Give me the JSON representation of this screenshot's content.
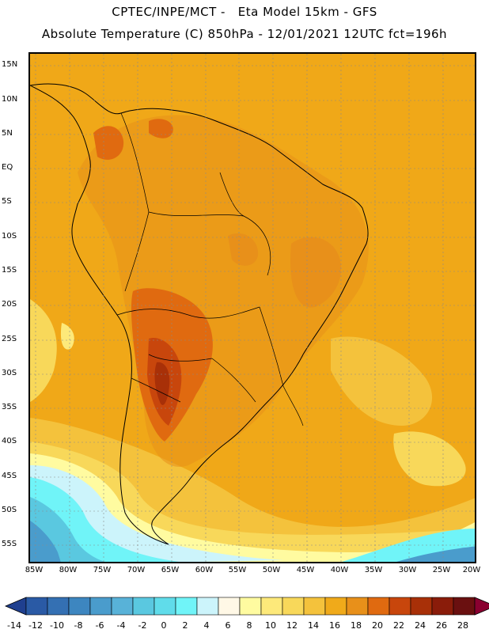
{
  "header": {
    "line1": "CPTEC/INPE/MCT -   Eta Model 15km - GFS",
    "line2": "Absolute Temperature (C) 850hPa - 12/01/2021 12UTC fct=196h"
  },
  "map": {
    "lat_labels": [
      "15N",
      "10N",
      "5N",
      "EQ",
      "5S",
      "10S",
      "15S",
      "20S",
      "25S",
      "30S",
      "35S",
      "40S",
      "45S",
      "50S",
      "55S"
    ],
    "lon_labels": [
      "85W",
      "80W",
      "75W",
      "70W",
      "65W",
      "60W",
      "55W",
      "50W",
      "45W",
      "40W",
      "35W",
      "30W",
      "25W",
      "20W"
    ]
  },
  "colorbar": {
    "colors": [
      "#1f3f8f",
      "#2a5aa5",
      "#3470b3",
      "#3d86c0",
      "#4a9ccc",
      "#58b2d8",
      "#5ac8e0",
      "#60dcea",
      "#70f4f8",
      "#ccf4fb",
      "#fff8e6",
      "#fffba0",
      "#fde97a",
      "#f8d85a",
      "#f4c23c",
      "#f0aa1a",
      "#e8901a",
      "#e06a10",
      "#c8460c",
      "#a83008",
      "#8a1c0a",
      "#6a1010",
      "#8a0030"
    ],
    "labels": [
      "-14",
      "-12",
      "-10",
      "-8",
      "-6",
      "-4",
      "-2",
      "0",
      "2",
      "4",
      "6",
      "8",
      "10",
      "12",
      "14",
      "16",
      "18",
      "20",
      "22",
      "24",
      "26",
      "28"
    ]
  }
}
